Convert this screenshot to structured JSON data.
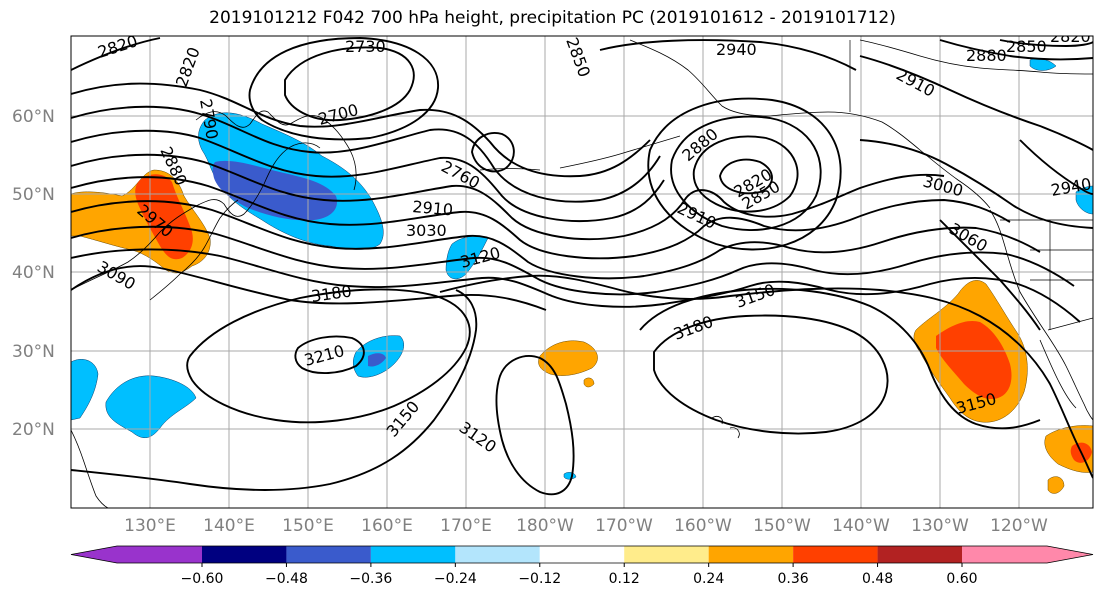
{
  "title": "2019101212 F042 700 hPa height, precipitation PC (2019101612 - 2019101712)",
  "map": {
    "lat_labels": [
      "60°N",
      "50°N",
      "40°N",
      "30°N",
      "20°N"
    ],
    "lon_labels": [
      "130°E",
      "140°E",
      "150°E",
      "160°E",
      "170°E",
      "180°W",
      "170°W",
      "160°W",
      "150°W",
      "140°W",
      "130°W",
      "120°W"
    ],
    "contour_labels": [
      "2820",
      "2820",
      "2730",
      "2850",
      "2940",
      "2880",
      "2850",
      "2820",
      "2910",
      "2790",
      "2700",
      "2880",
      "2760",
      "2880",
      "2820",
      "2850",
      "3000",
      "2940",
      "2910",
      "2910",
      "3030",
      "2970",
      "3120",
      "3060",
      "3090",
      "3180",
      "3150",
      "3180",
      "3210",
      "3150",
      "3150",
      "3120"
    ],
    "shading": {
      "colors": {
        "neg_060": "#9933cc",
        "neg_048": "#000080",
        "neg_036": "#3a5bcc",
        "neg_024": "#00bfff",
        "neg_012": "#b3e5fc",
        "neutral": "#ffffff",
        "pos_012": "#ffec8b",
        "pos_024": "#ffa500",
        "pos_036": "#ff4000",
        "pos_048": "#b22222",
        "pos_060": "#ff88aa"
      }
    }
  },
  "colorbar": {
    "tick_labels": [
      "-0.60",
      "-0.48",
      "-0.36",
      "-0.24",
      "-0.12",
      "0.12",
      "0.24",
      "0.36",
      "0.48",
      "0.60"
    ],
    "colors": [
      "#9933cc",
      "#000080",
      "#3a5bcc",
      "#00bfff",
      "#b3e5fc",
      "#ffffff",
      "#ffec8b",
      "#ffa500",
      "#ff4000",
      "#b22222",
      "#ff88aa"
    ]
  }
}
